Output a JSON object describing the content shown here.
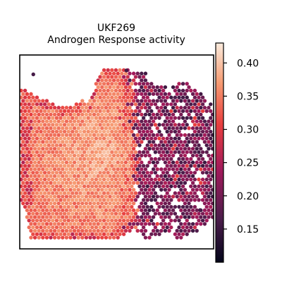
{
  "chart_data": {
    "type": "heatmap",
    "title": "UKF269",
    "subtitle": "Androgen Response activity",
    "xlabel": "",
    "ylabel": "",
    "colorbar": {
      "range": [
        0.1,
        0.43
      ],
      "ticks": [
        {
          "value": 0.4,
          "label": "0.40"
        },
        {
          "value": 0.35,
          "label": "0.35"
        },
        {
          "value": 0.3,
          "label": "0.30"
        },
        {
          "value": 0.25,
          "label": "0.25"
        },
        {
          "value": 0.2,
          "label": "0.20"
        },
        {
          "value": 0.15,
          "label": "0.15"
        }
      ],
      "colormap": "rocket",
      "stops": [
        "#03051a",
        "#4c1d4b",
        "#a11a5b",
        "#e83f3f",
        "#f69c73",
        "#faebdd"
      ]
    },
    "spatial_layout": {
      "spacing": 5.6,
      "tissue_outline": {
        "top": [
          [
            0.02,
            0.82
          ],
          [
            0.06,
            0.8
          ],
          [
            0.1,
            0.78
          ],
          [
            0.16,
            0.77
          ],
          [
            0.2,
            0.73
          ],
          [
            0.3,
            0.76
          ],
          [
            0.36,
            0.76
          ],
          [
            0.42,
            0.93
          ],
          [
            0.56,
            0.93
          ],
          [
            0.64,
            0.91
          ],
          [
            0.7,
            0.84
          ],
          [
            0.78,
            0.83
          ],
          [
            0.82,
            0.87
          ],
          [
            0.88,
            0.84
          ],
          [
            0.94,
            0.8
          ],
          [
            0.98,
            0.75
          ]
        ],
        "bottom": [
          [
            0.02,
            0.22
          ],
          [
            0.06,
            0.05
          ],
          [
            0.1,
            0.05
          ],
          [
            0.3,
            0.05
          ],
          [
            0.5,
            0.05
          ],
          [
            0.58,
            0.1
          ],
          [
            0.66,
            0.05
          ],
          [
            0.74,
            0.08
          ],
          [
            0.82,
            0.05
          ],
          [
            0.88,
            0.08
          ],
          [
            0.94,
            0.1
          ],
          [
            0.98,
            0.15
          ]
        ]
      },
      "boundary": [
        [
          0.0,
          0.59
        ],
        [
          0.5,
          0.6
        ],
        [
          1.0,
          0.56
        ]
      ],
      "left_region": {
        "base": 0.34,
        "center": 0.4,
        "center_boost": 0.04,
        "edge_drop": 0.07
      },
      "right_region": {
        "mean": 0.2,
        "spread": 0.05
      },
      "missing_fraction_right": 0.16
    }
  }
}
